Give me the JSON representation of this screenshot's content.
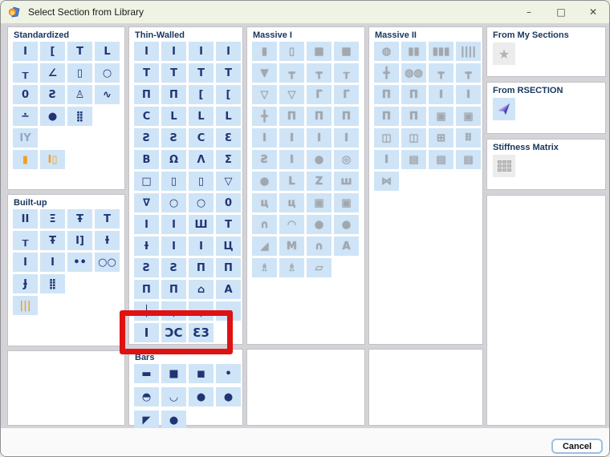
{
  "window": {
    "title": "Select Section from Library",
    "minimize": "–",
    "maximize": "□",
    "close": "✕"
  },
  "footer": {
    "cancel_label": "Cancel"
  },
  "colors": {
    "titlebar_bg": "#eff3e3",
    "cell_bg": "#cfe4f6",
    "icon_navy": "#1f3575",
    "icon_orange": "#f09e26",
    "icon_gray": "#a2a7ad",
    "label_navy": "#17365d",
    "highlight_red": "#e01111"
  },
  "groups": {
    "standardized": {
      "label": "Standardized",
      "variant": "blue",
      "rows": [
        [
          "I",
          "[",
          "T",
          "L"
        ],
        [
          "┰",
          "∠",
          "▯",
          "○"
        ],
        [
          "0",
          "Ƨ",
          "♙",
          "∿"
        ],
        [
          "∸",
          "●",
          "⣿"
        ],
        [
          {
            "g": "IY",
            "v": "muted"
          }
        ],
        [
          {
            "g": "▮",
            "v": "orange"
          },
          {
            "g": "I▯",
            "v": "orange"
          }
        ]
      ]
    },
    "builtup": {
      "label": "Built-up",
      "variant": "blue",
      "rows": [
        [
          "II",
          "Ξ",
          "Ŧ",
          "T"
        ],
        [
          "┰",
          "Ŧ",
          "I]",
          "Ɨ"
        ],
        [
          "I",
          "I",
          "••",
          "○○"
        ],
        [
          "Ɉ",
          "⣿"
        ],
        [
          {
            "g": "|||",
            "v": "orange"
          }
        ]
      ]
    },
    "thinwalled": {
      "label": "Thin-Walled",
      "variant": "blue",
      "rows": [
        [
          "I",
          "I",
          "I",
          "I"
        ],
        [
          "T",
          "T",
          "T",
          "T"
        ],
        [
          "Π",
          "Π",
          "[",
          "["
        ],
        [
          "C",
          "L",
          "L",
          "L"
        ],
        [
          "Ƨ",
          "Ƨ",
          "C",
          "Ɛ"
        ],
        [
          "B",
          "Ω",
          "Λ",
          "Σ"
        ],
        [
          "□",
          "▯",
          "▯",
          "▽"
        ],
        [
          "∇",
          "○",
          "○",
          "0"
        ],
        [
          "Ι",
          "I",
          "Ш",
          "T"
        ],
        [
          "Ɨ",
          "I",
          "I",
          "Ц"
        ],
        [
          "Ƨ",
          "Ƨ",
          "Π",
          "Π"
        ],
        [
          "Π",
          "Π",
          "⌂",
          "A"
        ],
        [
          "┼",
          "┬",
          "┬",
          "┬"
        ],
        [
          {
            "g": "I",
            "v": "bold"
          },
          {
            "g": "ƆC",
            "v": "bold"
          },
          {
            "g": "Ɛ3",
            "v": "bold"
          }
        ]
      ]
    },
    "bars": {
      "label": "Bars",
      "variant": "blue",
      "rows": [
        [
          "▬",
          "■",
          "◼",
          "•"
        ],
        [
          "◓",
          "◡",
          "●",
          "●"
        ],
        [
          "◤",
          "●"
        ]
      ]
    },
    "massive1": {
      "label": "Massive I",
      "variant": "gray",
      "rows": [
        [
          "▮",
          "▯",
          "■",
          "■"
        ],
        [
          "▼",
          "┳",
          "┳",
          "┰"
        ],
        [
          "▽",
          "▽",
          "Γ",
          "Γ"
        ],
        [
          "╋",
          "Π",
          "Π",
          "Π"
        ],
        [
          "I",
          "I",
          "I",
          "I"
        ],
        [
          "Ƨ",
          "I",
          "●",
          "◎"
        ],
        [
          "●",
          "L",
          "Z",
          "ш"
        ],
        [
          "ц",
          "ц",
          "▣",
          "▣"
        ],
        [
          "∩",
          "◠",
          "●",
          "●"
        ],
        [
          "◢",
          "M",
          "∩",
          "A"
        ],
        [
          "♗",
          "♗",
          "▱"
        ]
      ]
    },
    "massive2": {
      "label": "Massive II",
      "variant": "gray",
      "rows": [
        [
          "◍",
          "▮▮",
          "▮▮▮",
          "||||"
        ],
        [
          "╋",
          "◍◍",
          "┳",
          "┳"
        ],
        [
          "Π",
          "Π",
          "I",
          "I"
        ],
        [
          "Π",
          "Π",
          "▣",
          "▣"
        ],
        [
          "◫",
          "◫",
          "⊞",
          "⠿"
        ],
        [
          "I",
          "▤",
          "▤",
          "▤"
        ],
        [
          "⋈"
        ]
      ]
    },
    "my_sections": {
      "label": "From My Sections",
      "star_glyph": "★"
    },
    "rsection": {
      "label": "From RSECTION"
    },
    "stiffness": {
      "label": "Stiffness Matrix"
    }
  }
}
